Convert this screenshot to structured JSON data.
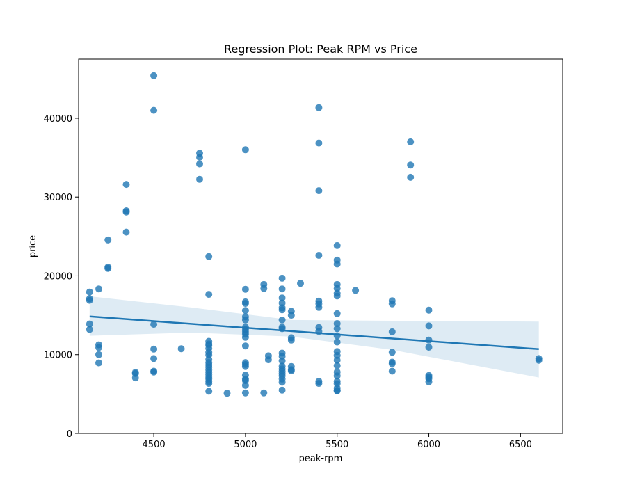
{
  "colors": {
    "points": "#1f77b4",
    "line": "#1f77b4",
    "band": "#1f77b4",
    "axes": "#000000"
  },
  "chart_data": {
    "type": "scatter",
    "title": "Regression Plot: Peak RPM vs Price",
    "xlabel": "peak-rpm",
    "ylabel": "price",
    "xlim": [
      4090,
      6730
    ],
    "ylim": [
      0,
      47500
    ],
    "xticks": [
      4500,
      5000,
      5500,
      6000,
      6500
    ],
    "yticks": [
      0,
      10000,
      20000,
      30000,
      40000
    ],
    "grid": false,
    "regression": {
      "x": [
        4150,
        6600
      ],
      "y": [
        14850,
        10700
      ],
      "ci_upper": [
        [
          4150,
          17400
        ],
        [
          4700,
          16000
        ],
        [
          5250,
          14400
        ],
        [
          5800,
          14300
        ],
        [
          6600,
          14200
        ]
      ],
      "ci_lower": [
        [
          4150,
          12400
        ],
        [
          4700,
          12800
        ],
        [
          5250,
          12300
        ],
        [
          5800,
          10600
        ],
        [
          6600,
          7100
        ]
      ]
    },
    "points": [
      [
        4150,
        17950
      ],
      [
        4150,
        17100
      ],
      [
        4150,
        16900
      ],
      [
        4150,
        13900
      ],
      [
        4150,
        13200
      ],
      [
        4200,
        18350
      ],
      [
        4200,
        11250
      ],
      [
        4200,
        10900
      ],
      [
        4200,
        10000
      ],
      [
        4200,
        8950
      ],
      [
        4250,
        24550
      ],
      [
        4250,
        21100
      ],
      [
        4250,
        20950
      ],
      [
        4350,
        31600
      ],
      [
        4350,
        28250
      ],
      [
        4350,
        28100
      ],
      [
        4350,
        25550
      ],
      [
        4400,
        7750
      ],
      [
        4400,
        7600
      ],
      [
        4400,
        7050
      ],
      [
        4500,
        45400
      ],
      [
        4500,
        41000
      ],
      [
        4500,
        13850
      ],
      [
        4500,
        10700
      ],
      [
        4500,
        9500
      ],
      [
        4500,
        7900
      ],
      [
        4500,
        7800
      ],
      [
        4650,
        10750
      ],
      [
        4750,
        35550
      ],
      [
        4750,
        35050
      ],
      [
        4750,
        34200
      ],
      [
        4750,
        32250
      ],
      [
        4800,
        22450
      ],
      [
        4800,
        17650
      ],
      [
        4800,
        11700
      ],
      [
        4800,
        11350
      ],
      [
        4800,
        11200
      ],
      [
        4800,
        10800
      ],
      [
        4800,
        10300
      ],
      [
        4800,
        9950
      ],
      [
        4800,
        9400
      ],
      [
        4800,
        9000
      ],
      [
        4800,
        8700
      ],
      [
        4800,
        8400
      ],
      [
        4800,
        8050
      ],
      [
        4800,
        7750
      ],
      [
        4800,
        7450
      ],
      [
        4800,
        7150
      ],
      [
        4800,
        6900
      ],
      [
        4800,
        6600
      ],
      [
        4800,
        6350
      ],
      [
        4800,
        5350
      ],
      [
        4900,
        5100
      ],
      [
        5000,
        36000
      ],
      [
        5000,
        18300
      ],
      [
        5000,
        16700
      ],
      [
        5000,
        16500
      ],
      [
        5000,
        15600
      ],
      [
        5000,
        14800
      ],
      [
        5000,
        14400
      ],
      [
        5000,
        13500
      ],
      [
        5000,
        13200
      ],
      [
        5000,
        12900
      ],
      [
        5000,
        12600
      ],
      [
        5000,
        12200
      ],
      [
        5000,
        11100
      ],
      [
        5000,
        9000
      ],
      [
        5000,
        8750
      ],
      [
        5000,
        8500
      ],
      [
        5000,
        7400
      ],
      [
        5000,
        6900
      ],
      [
        5000,
        6700
      ],
      [
        5000,
        6100
      ],
      [
        5000,
        5150
      ],
      [
        5100,
        18900
      ],
      [
        5100,
        18400
      ],
      [
        5100,
        5150
      ],
      [
        5125,
        9850
      ],
      [
        5125,
        9350
      ],
      [
        5200,
        19700
      ],
      [
        5200,
        18350
      ],
      [
        5200,
        17200
      ],
      [
        5200,
        16550
      ],
      [
        5200,
        15950
      ],
      [
        5200,
        15700
      ],
      [
        5200,
        14400
      ],
      [
        5200,
        13500
      ],
      [
        5200,
        13300
      ],
      [
        5200,
        10200
      ],
      [
        5200,
        9800
      ],
      [
        5200,
        9200
      ],
      [
        5200,
        8550
      ],
      [
        5200,
        8200
      ],
      [
        5200,
        7900
      ],
      [
        5200,
        7600
      ],
      [
        5200,
        7300
      ],
      [
        5200,
        6900
      ],
      [
        5200,
        6500
      ],
      [
        5200,
        5500
      ],
      [
        5250,
        15500
      ],
      [
        5250,
        15000
      ],
      [
        5250,
        12150
      ],
      [
        5250,
        11850
      ],
      [
        5250,
        8500
      ],
      [
        5250,
        8100
      ],
      [
        5250,
        7950
      ],
      [
        5300,
        19050
      ],
      [
        5400,
        41350
      ],
      [
        5400,
        36850
      ],
      [
        5400,
        30800
      ],
      [
        5400,
        22600
      ],
      [
        5400,
        16800
      ],
      [
        5400,
        16450
      ],
      [
        5400,
        16000
      ],
      [
        5400,
        13450
      ],
      [
        5400,
        12950
      ],
      [
        5400,
        6600
      ],
      [
        5400,
        6350
      ],
      [
        5500,
        23850
      ],
      [
        5500,
        22000
      ],
      [
        5500,
        21500
      ],
      [
        5500,
        18900
      ],
      [
        5500,
        18400
      ],
      [
        5500,
        17800
      ],
      [
        5500,
        17450
      ],
      [
        5500,
        15200
      ],
      [
        5500,
        13950
      ],
      [
        5500,
        13300
      ],
      [
        5500,
        12400
      ],
      [
        5500,
        11600
      ],
      [
        5500,
        10400
      ],
      [
        5500,
        9900
      ],
      [
        5500,
        9300
      ],
      [
        5500,
        8600
      ],
      [
        5500,
        7800
      ],
      [
        5500,
        7300
      ],
      [
        5500,
        6600
      ],
      [
        5500,
        6300
      ],
      [
        5500,
        5750
      ],
      [
        5500,
        5450
      ],
      [
        5500,
        5400
      ],
      [
        5600,
        18150
      ],
      [
        5800,
        16850
      ],
      [
        5800,
        16450
      ],
      [
        5800,
        12900
      ],
      [
        5800,
        10300
      ],
      [
        5800,
        9050
      ],
      [
        5800,
        8850
      ],
      [
        5800,
        7900
      ],
      [
        5900,
        37000
      ],
      [
        5900,
        34050
      ],
      [
        5900,
        32500
      ],
      [
        6000,
        15650
      ],
      [
        6000,
        13650
      ],
      [
        6000,
        11850
      ],
      [
        6000,
        10950
      ],
      [
        6000,
        7350
      ],
      [
        6000,
        7150
      ],
      [
        6000,
        6950
      ],
      [
        6000,
        6550
      ],
      [
        6600,
        9500
      ],
      [
        6600,
        9300
      ]
    ]
  }
}
